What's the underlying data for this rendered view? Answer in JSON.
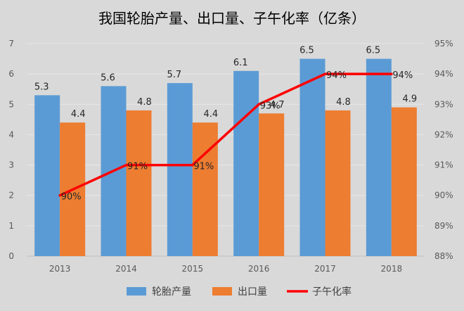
{
  "chart_data": {
    "type": "bar",
    "title": "我国轮胎产量、出口量、子午化率（亿条）",
    "categories": [
      "2013",
      "2014",
      "2015",
      "2016",
      "2017",
      "2018"
    ],
    "series": [
      {
        "name": "轮胎产量",
        "type": "bar",
        "axis": "left",
        "color": "#5b9bd5",
        "values": [
          5.3,
          5.6,
          5.7,
          6.1,
          6.5,
          6.5
        ],
        "labels": [
          "5.3",
          "5.6",
          "5.7",
          "6.1",
          "6.5",
          "6.5"
        ]
      },
      {
        "name": "出口量",
        "type": "bar",
        "axis": "left",
        "color": "#ed7d31",
        "values": [
          4.4,
          4.8,
          4.4,
          4.7,
          4.8,
          4.9
        ],
        "labels": [
          "4.4",
          "4.8",
          "4.4",
          "4.7",
          "4.8",
          "4.9"
        ]
      },
      {
        "name": "子午化率",
        "type": "line",
        "axis": "right",
        "color": "#ff0000",
        "values": [
          90,
          91,
          91,
          93,
          94,
          94
        ],
        "labels": [
          "90%",
          "91%",
          "91%",
          "93%",
          "94%",
          "94%"
        ]
      }
    ],
    "y_left": {
      "min": 0,
      "max": 7,
      "ticks": [
        "0",
        "1",
        "2",
        "3",
        "4",
        "5",
        "6",
        "7"
      ]
    },
    "y_right": {
      "min": 88,
      "max": 95,
      "ticks": [
        "88%",
        "89%",
        "90%",
        "91%",
        "92%",
        "93%",
        "94%",
        "95%"
      ]
    },
    "grid": true,
    "legend": "bottom"
  }
}
